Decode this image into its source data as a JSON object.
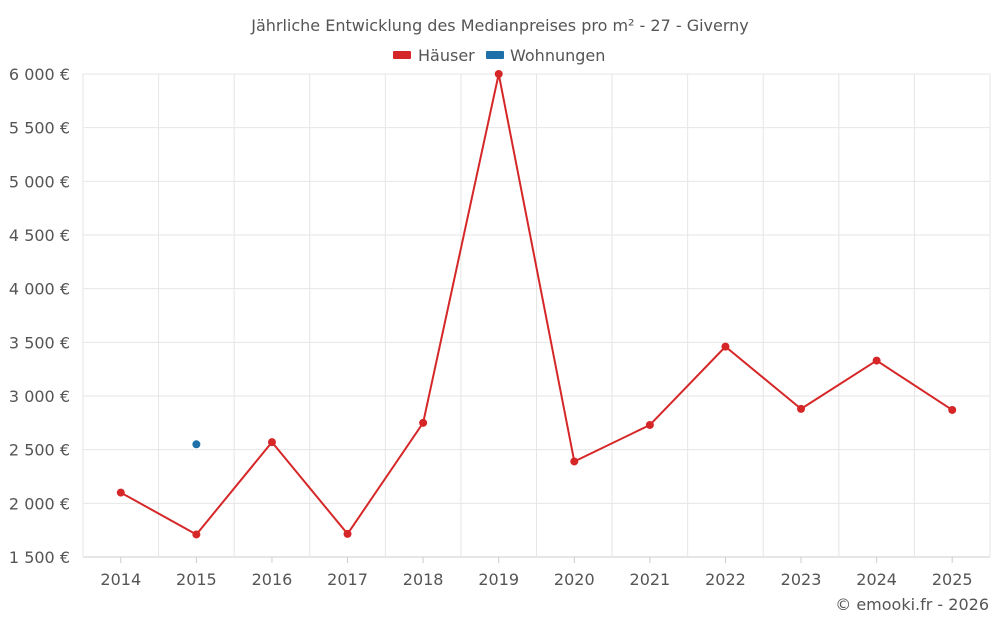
{
  "chart_data": {
    "type": "line",
    "title": "Jährliche Entwicklung des Medianpreises pro m² - 27 - Giverny",
    "xlabel": "",
    "ylabel": "",
    "categories": [
      "2014",
      "2015",
      "2016",
      "2017",
      "2018",
      "2019",
      "2020",
      "2021",
      "2022",
      "2023",
      "2024",
      "2025"
    ],
    "ylim": [
      1500,
      6000
    ],
    "y_ticks": [
      1500,
      2000,
      2500,
      3000,
      3500,
      4000,
      4500,
      5000,
      5500,
      6000
    ],
    "y_tick_labels": [
      "1 500 €",
      "2 000 €",
      "2 500 €",
      "3 000 €",
      "3 500 €",
      "4 000 €",
      "4 500 €",
      "5 000 €",
      "5 500 €",
      "6 000 €"
    ],
    "grid": true,
    "legend_position": "top-center",
    "series": [
      {
        "name": "Häuser",
        "color": "#d62728",
        "values": [
          2100,
          1710,
          2570,
          1715,
          2750,
          6000,
          2390,
          2730,
          3460,
          2880,
          3330,
          2870
        ]
      },
      {
        "name": "Wohnungen",
        "color": "#1f6fa8",
        "values": [
          null,
          2550,
          null,
          null,
          null,
          null,
          null,
          null,
          null,
          null,
          null,
          null
        ]
      }
    ],
    "credit": "© emooki.fr - 2026"
  }
}
